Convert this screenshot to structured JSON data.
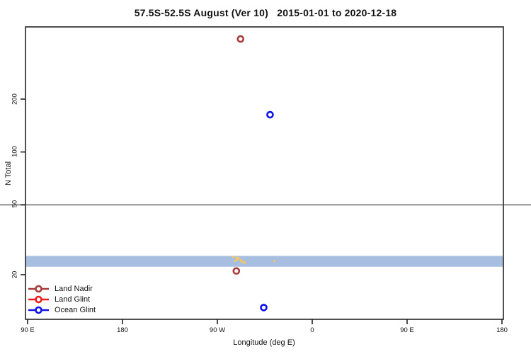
{
  "title": "57.5S-52.5S August (Ver 10)   2015-01-01 to 2020-12-18",
  "chart_data": {
    "type": "scatter",
    "xlabel": "Longitude (deg E)",
    "ylabel": "N Total",
    "x_scale": "linear-longitude-wrapped",
    "y_scale": "log10",
    "xlim_deg": [
      88,
      541
    ],
    "ylim": [
      11,
      515
    ],
    "x_tick_degs": [
      90,
      180,
      270,
      360,
      450,
      540
    ],
    "x_tick_labels": [
      "90 E",
      "180",
      "90 W",
      "0",
      "90 E",
      "180"
    ],
    "y_ticks": [
      20,
      50,
      100,
      200
    ],
    "y_tick_labels": [
      "20",
      "50",
      "100",
      "200"
    ],
    "grid": "off",
    "reference_line": {
      "y": 50,
      "color": "#909090"
    },
    "band": {
      "n_min": 22.2,
      "n_max": 25.6,
      "color": "#A8BEE0",
      "extent": "full-width"
    },
    "series": [
      {
        "name": "Land Nadir",
        "color": "#A83C3A",
        "marker": "open-circle",
        "points": [
          {
            "lon_deg": 292,
            "lon_label": "68 W",
            "n": 440
          },
          {
            "lon_deg": 288,
            "lon_label": "72 W",
            "n": 21
          }
        ]
      },
      {
        "name": "Land Glint",
        "color": "#EC1C1C",
        "marker": "open-circle",
        "points": []
      },
      {
        "name": "Ocean Glint",
        "color": "#1212EA",
        "marker": "open-circle",
        "points": [
          {
            "lon_deg": 320,
            "lon_label": "40 W",
            "n": 163
          },
          {
            "lon_deg": 314,
            "lon_label": "46 W",
            "n": 13
          }
        ]
      }
    ],
    "orange_marks": {
      "color": "#F4C761",
      "points": [
        {
          "lon_deg": 285,
          "n": 25.2
        },
        {
          "lon_deg": 288,
          "n": 25.0
        },
        {
          "lon_deg": 289,
          "n": 24.5
        },
        {
          "lon_deg": 290,
          "n": 24.8
        },
        {
          "lon_deg": 292,
          "n": 24.3
        },
        {
          "lon_deg": 287,
          "n": 24.0
        },
        {
          "lon_deg": 293,
          "n": 23.8
        },
        {
          "lon_deg": 295,
          "n": 23.6
        },
        {
          "lon_deg": 296,
          "n": 23.4
        },
        {
          "lon_deg": 324,
          "n": 23.9
        }
      ]
    }
  },
  "legend": {
    "items": [
      {
        "label": "Land Nadir",
        "color": "#A83C3A"
      },
      {
        "label": "Land Glint",
        "color": "#EC1C1C"
      },
      {
        "label": "Ocean Glint",
        "color": "#1212EA"
      }
    ]
  },
  "frame": {
    "color": "#3C3C3C"
  }
}
